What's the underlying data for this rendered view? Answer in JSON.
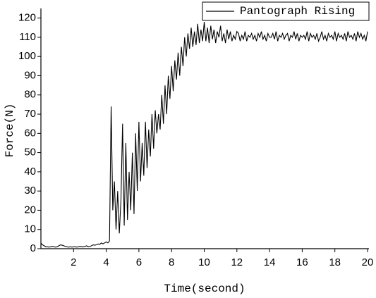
{
  "chart_data": {
    "type": "line",
    "xlabel": "Time(second)",
    "ylabel": "Force(N)",
    "xlim": [
      0,
      20
    ],
    "ylim": [
      0,
      125
    ],
    "xticks": [
      2,
      4,
      6,
      8,
      10,
      12,
      14,
      16,
      18,
      20
    ],
    "yticks": [
      0,
      10,
      20,
      30,
      40,
      50,
      60,
      70,
      80,
      90,
      100,
      110,
      120
    ],
    "legend": "upper right",
    "x": [
      0,
      0.1,
      0.2,
      0.3,
      0.4,
      0.5,
      0.6,
      0.7,
      0.8,
      0.9,
      1,
      1.1,
      1.2,
      1.3,
      1.4,
      1.5,
      1.6,
      1.7,
      1.8,
      1.9,
      2,
      2.1,
      2.2,
      2.3,
      2.4,
      2.5,
      2.6,
      2.7,
      2.8,
      2.9,
      3,
      3.1,
      3.2,
      3.3,
      3.4,
      3.5,
      3.6,
      3.7,
      3.8,
      3.9,
      4,
      4.1,
      4.2,
      4.3,
      4.4,
      4.5,
      4.6,
      4.7,
      4.8,
      4.9,
      5,
      5.1,
      5.2,
      5.3,
      5.4,
      5.5,
      5.6,
      5.7,
      5.8,
      5.9,
      6,
      6.1,
      6.2,
      6.3,
      6.4,
      6.5,
      6.6,
      6.7,
      6.8,
      6.9,
      7,
      7.1,
      7.2,
      7.3,
      7.4,
      7.5,
      7.6,
      7.7,
      7.8,
      7.9,
      8,
      8.1,
      8.2,
      8.3,
      8.4,
      8.5,
      8.6,
      8.7,
      8.8,
      8.9,
      9,
      9.1,
      9.2,
      9.3,
      9.4,
      9.5,
      9.6,
      9.7,
      9.8,
      9.9,
      10,
      10.1,
      10.2,
      10.3,
      10.4,
      10.5,
      10.6,
      10.7,
      10.8,
      10.9,
      11,
      11.1,
      11.2,
      11.3,
      11.4,
      11.5,
      11.6,
      11.7,
      11.8,
      11.9,
      12,
      12.1,
      12.2,
      12.3,
      12.4,
      12.5,
      12.6,
      12.7,
      12.8,
      12.9,
      13,
      13.1,
      13.2,
      13.3,
      13.4,
      13.5,
      13.6,
      13.7,
      13.8,
      13.9,
      14,
      14.1,
      14.2,
      14.3,
      14.4,
      14.5,
      14.6,
      14.7,
      14.8,
      14.9,
      15,
      15.1,
      15.2,
      15.3,
      15.4,
      15.5,
      15.6,
      15.7,
      15.8,
      15.9,
      16,
      16.1,
      16.2,
      16.3,
      16.4,
      16.5,
      16.6,
      16.7,
      16.8,
      16.9,
      17,
      17.1,
      17.2,
      17.3,
      17.4,
      17.5,
      17.6,
      17.7,
      17.8,
      17.9,
      18,
      18.1,
      18.2,
      18.3,
      18.4,
      18.5,
      18.6,
      18.7,
      18.8,
      18.9,
      19,
      19.1,
      19.2,
      19.3,
      19.4,
      19.5,
      19.6,
      19.7,
      19.8,
      19.9,
      20
    ],
    "series": [
      {
        "name": "Pantograph Rising",
        "color": "#000000",
        "values": [
          3,
          2,
          1.5,
          1,
          1,
          0.8,
          1,
          1.2,
          1,
          0.8,
          1,
          1.5,
          2,
          1.8,
          1.5,
          1.2,
          1,
          0.8,
          1,
          0.8,
          1,
          1,
          0.8,
          1,
          1.2,
          1,
          1,
          1.2,
          1.5,
          1,
          1.2,
          1.5,
          2,
          1.8,
          2,
          2.5,
          2.2,
          3,
          2.5,
          3,
          3.5,
          3,
          4,
          74,
          20,
          35,
          10,
          30,
          8,
          25,
          65,
          12,
          55,
          15,
          40,
          20,
          50,
          18,
          60,
          30,
          66,
          35,
          55,
          38,
          66,
          42,
          62,
          48,
          70,
          52,
          72,
          60,
          70,
          62,
          80,
          65,
          85,
          70,
          90,
          78,
          95,
          82,
          98,
          88,
          102,
          90,
          105,
          95,
          110,
          100,
          112,
          104,
          115,
          105,
          113,
          106,
          117,
          107,
          114,
          108,
          118,
          108,
          115,
          107,
          116,
          109,
          114,
          107,
          113,
          110,
          116,
          108,
          112,
          107,
          114,
          109,
          113,
          108,
          111,
          109,
          113,
          112,
          108,
          111,
          109,
          113,
          108,
          111,
          110,
          112,
          109,
          111,
          108,
          112,
          110,
          113,
          109,
          111,
          108,
          112,
          110,
          110,
          112,
          109,
          113,
          108,
          111,
          110,
          112,
          109,
          111,
          112,
          108,
          111,
          110,
          113,
          109,
          112,
          108,
          111,
          110,
          111,
          109,
          113,
          108,
          112,
          110,
          111,
          109,
          112,
          108,
          110,
          113,
          109,
          111,
          108,
          112,
          110,
          111,
          109,
          113,
          108,
          112,
          110,
          111,
          109,
          112,
          108,
          113,
          110,
          111,
          109,
          112,
          108,
          113,
          110,
          112,
          109,
          111,
          108,
          113
        ]
      }
    ]
  }
}
